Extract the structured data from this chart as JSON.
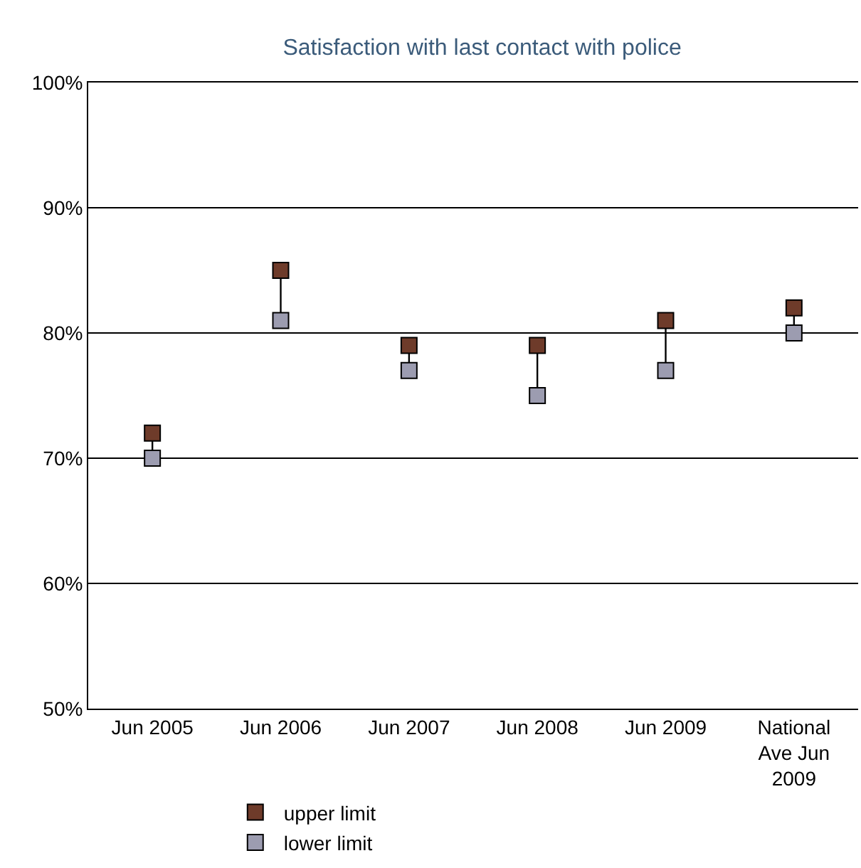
{
  "chart_data": {
    "type": "scatter",
    "title": "Satisfaction with last contact with police",
    "categories": [
      "Jun 2005",
      "Jun 2006",
      "Jun 2007",
      "Jun 2008",
      "Jun 2009",
      "National Ave Jun 2009"
    ],
    "series": [
      {
        "name": "upper limit",
        "color": "#6e3b2a",
        "values": [
          72,
          85,
          79,
          79,
          81,
          82
        ]
      },
      {
        "name": "lower limit",
        "color": "#9c9cb0",
        "values": [
          70,
          81,
          77,
          75,
          77,
          80
        ]
      }
    ],
    "ylim": [
      50,
      100
    ],
    "yticks": [
      {
        "value": 50,
        "label": "50%"
      },
      {
        "value": 60,
        "label": "60%"
      },
      {
        "value": 70,
        "label": "70%"
      },
      {
        "value": 80,
        "label": "80%"
      },
      {
        "value": 90,
        "label": "90%"
      },
      {
        "value": 100,
        "label": "100%"
      }
    ],
    "grid": "y",
    "legend": "bottom",
    "marker": "square"
  }
}
